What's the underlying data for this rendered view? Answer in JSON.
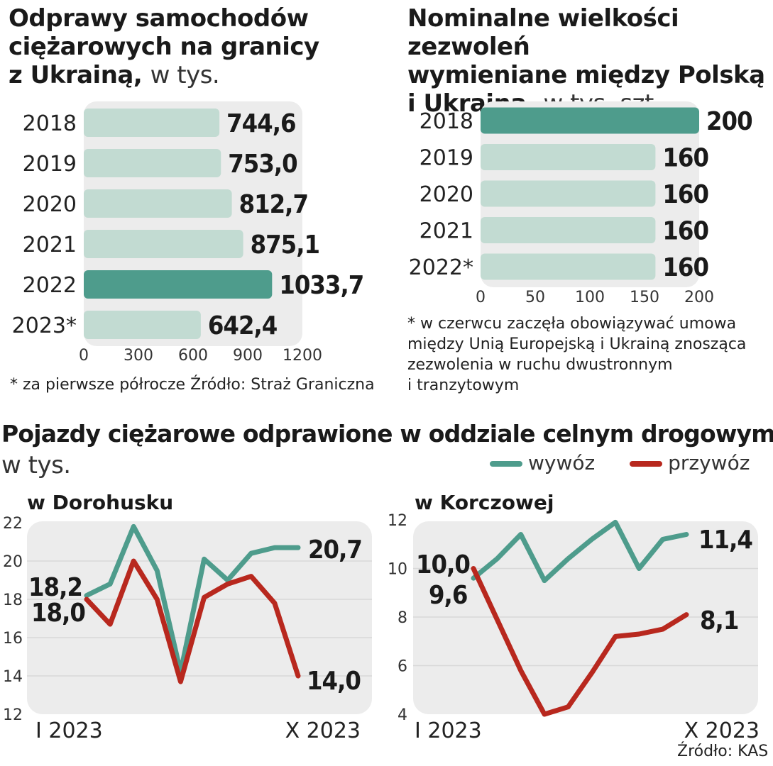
{
  "colors": {
    "light_bar": "#c2dbd2",
    "dark_bar": "#4e9c8c",
    "panel": "#ececec",
    "wywoz": "#4e9c8c",
    "przywoz": "#b8281e"
  },
  "chart1": {
    "title_bold": "Odprawy samochodów ciężarowych na granicy z Ukrainą,",
    "title_lines": [
      "Odprawy samochodów",
      "ciężarowych na granicy",
      "z Ukrainą,"
    ],
    "unit": "w tys.",
    "footnote": "* za pierwsze półrocze  Źródło: Straż Graniczna"
  },
  "chart2": {
    "title_lines": [
      "Nominalne wielkości zezwoleń",
      "wymieniane między Polską",
      "i Ukrainą,"
    ],
    "unit": "w tys. szt.",
    "footnote_lines": [
      "* w czerwcu zaczęła obowiązywać umowa",
      "między Unią Europejską i Ukrainą znosząca",
      "zezwolenia w ruchu dwustronnym",
      "i tranzytowym"
    ]
  },
  "bottom": {
    "title": "Pojazdy ciężarowe odprawione w oddziale celnym drogowym",
    "unit": "w tys.",
    "legend": {
      "wywoz": "wywóz",
      "przywoz": "przywóz"
    },
    "source": "Źródło: KAS"
  },
  "chart_data": [
    {
      "type": "bar",
      "orientation": "horizontal",
      "title": "Odprawy samochodów ciężarowych na granicy z Ukrainą, w tys.",
      "categories": [
        "2018",
        "2019",
        "2020",
        "2021",
        "2022",
        "2023*"
      ],
      "values": [
        744.6,
        753.0,
        812.7,
        875.1,
        1033.7,
        642.4
      ],
      "value_labels": [
        "744,6",
        "753,0",
        "812,7",
        "875,1",
        "1033,7",
        "642,4"
      ],
      "highlight": "2022",
      "xlim": [
        0,
        1200
      ],
      "xticks": [
        "0",
        "300",
        "600",
        "900",
        "1200"
      ]
    },
    {
      "type": "bar",
      "orientation": "horizontal",
      "title": "Nominalne wielkości zezwoleń wymieniane między Polską i Ukrainą, w tys. szt.",
      "categories": [
        "2018",
        "2019",
        "2020",
        "2021",
        "2022*"
      ],
      "values": [
        200,
        160,
        160,
        160,
        160
      ],
      "value_labels": [
        "200",
        "160",
        "160",
        "160",
        "160"
      ],
      "highlight": "2018",
      "xlim": [
        0,
        200
      ],
      "xticks": [
        "0",
        "50",
        "100",
        "150",
        "200"
      ]
    },
    {
      "type": "line",
      "title": "w Dorohusku",
      "x": [
        1,
        2,
        3,
        4,
        5,
        6,
        7,
        8,
        9,
        10
      ],
      "xlabels": [
        "I 2023",
        "X 2023"
      ],
      "ylim": [
        12,
        22
      ],
      "yticks": [
        "12",
        "14",
        "16",
        "18",
        "20",
        "22"
      ],
      "series": [
        {
          "name": "wywóz",
          "values": [
            18.2,
            18.8,
            21.8,
            19.5,
            14.2,
            20.1,
            19.0,
            20.4,
            20.7,
            20.7
          ]
        },
        {
          "name": "przywóz",
          "values": [
            18.0,
            16.7,
            20.0,
            18.0,
            13.7,
            18.1,
            18.8,
            19.2,
            17.8,
            14.0
          ]
        }
      ],
      "labels": {
        "wywoz_start": "18,2",
        "przywoz_start": "18,0",
        "wywoz_end": "20,7",
        "przywoz_end": "14,0"
      }
    },
    {
      "type": "line",
      "title": "w Korczowej",
      "x": [
        1,
        2,
        3,
        4,
        5,
        6,
        7,
        8,
        9,
        10
      ],
      "xlabels": [
        "I 2023",
        "X 2023"
      ],
      "ylim": [
        4,
        12
      ],
      "yticks": [
        "4",
        "6",
        "8",
        "10",
        "12"
      ],
      "series": [
        {
          "name": "wywóz",
          "values": [
            9.6,
            10.4,
            11.4,
            9.5,
            10.4,
            11.2,
            11.9,
            10.0,
            11.2,
            11.4
          ]
        },
        {
          "name": "przywóz",
          "values": [
            10.0,
            7.9,
            5.8,
            4.0,
            4.3,
            5.7,
            7.2,
            7.3,
            7.5,
            8.1
          ]
        }
      ],
      "labels": {
        "przywoz_start": "10,0",
        "wywoz_start": "9,6",
        "wywoz_end": "11,4",
        "przywoz_end": "8,1"
      }
    }
  ]
}
